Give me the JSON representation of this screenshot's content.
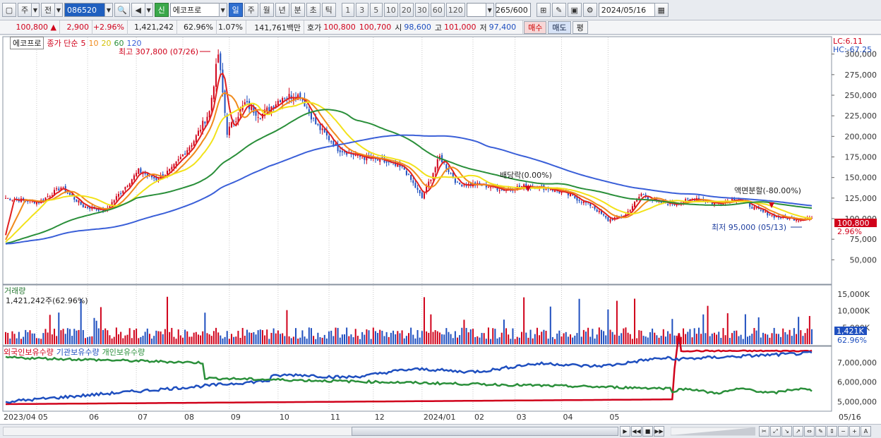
{
  "toolbar": {
    "period_main": "주",
    "prev_label": "전",
    "code": "086520",
    "name_badge": "신",
    "name": "에코프로",
    "periods": [
      "일",
      "주",
      "월",
      "년",
      "분",
      "초",
      "틱"
    ],
    "selected_period": "일",
    "intervals": [
      "1",
      "3",
      "5",
      "10",
      "20",
      "30",
      "60",
      "120"
    ],
    "count": "265/600",
    "date": "2024/05/16"
  },
  "quote": {
    "price": "100,800",
    "change": "2,900",
    "change_pct": "+2.96%",
    "volume": "1,421,242",
    "vol_ratio": "62.96%",
    "turnover": "1.07%",
    "amount": "141,761백만",
    "bid_label": "호가",
    "ask": "100,800",
    "bid": "100,700",
    "open_label": "시",
    "open": "98,600",
    "high_label": "고",
    "high": "101,000",
    "low_label": "저",
    "low": "97,400",
    "buy": "매수",
    "sell": "매도",
    "eval": "평"
  },
  "legend": {
    "name": "에코프로",
    "ma_label": "종가 단순",
    "ma5": "5",
    "ma10": "10",
    "ma20": "20",
    "ma60": "60",
    "ma120": "120"
  },
  "annotations": {
    "high": "최고 307,800 (07/26)",
    "low": "최저 95,000 (05/13)",
    "dividend": "배당락(0.00%)",
    "split": "액면분할(-80.00%)"
  },
  "right_labels": {
    "lc": "LC:6.11",
    "hc": "HC:-67.25",
    "price_tag": "100,800",
    "pct_tag": "2.96%",
    "vol_tag": "1,421K",
    "vol_pct_tag": "62.96%"
  },
  "volume": {
    "title": "거래량",
    "info": "1,421,242주(62.96%)"
  },
  "holdings": {
    "foreign": "외국인보유수량",
    "inst": "기관보유수량",
    "indiv": "개인보유수량"
  },
  "colors": {
    "up": "#d0021b",
    "down": "#1f4fbf",
    "ma5": "#e02020",
    "ma10": "#f08a1c",
    "ma20": "#f2e21a",
    "ma60": "#2a8f3a",
    "ma120": "#3a5fd8"
  },
  "chart_data": {
    "type": "candlestick",
    "price_axis": [
      "300,000",
      "275,000",
      "250,000",
      "225,000",
      "200,000",
      "175,000",
      "150,000",
      "125,000",
      "100,000",
      "75,000",
      "50,000"
    ],
    "volume_axis": [
      "15,000K",
      "10,000K",
      "5,000K"
    ],
    "holdings_axis": [
      "7,000,000",
      "6,000,000",
      "5,000,000"
    ],
    "x_labels": [
      "2023/04",
      "05",
      "06",
      "07",
      "08",
      "09",
      "10",
      "11",
      "12",
      "2024/01",
      "02",
      "03",
      "04",
      "05",
      "05/16"
    ],
    "close_path": [
      [
        0,
        125000
      ],
      [
        15,
        120000
      ],
      [
        25,
        138000
      ],
      [
        35,
        115000
      ],
      [
        45,
        110000
      ],
      [
        60,
        158000
      ],
      [
        68,
        148000
      ],
      [
        75,
        160000
      ],
      [
        85,
        195000
      ],
      [
        92,
        230000
      ],
      [
        96,
        300000
      ],
      [
        100,
        205000
      ],
      [
        108,
        240000
      ],
      [
        115,
        225000
      ],
      [
        125,
        248000
      ],
      [
        133,
        250000
      ],
      [
        140,
        215000
      ],
      [
        150,
        185000
      ],
      [
        160,
        175000
      ],
      [
        170,
        170000
      ],
      [
        180,
        160000
      ],
      [
        188,
        125000
      ],
      [
        196,
        175000
      ],
      [
        204,
        142000
      ],
      [
        215,
        141000
      ],
      [
        225,
        135000
      ],
      [
        235,
        140000
      ],
      [
        245,
        137000
      ],
      [
        255,
        128000
      ],
      [
        265,
        115000
      ],
      [
        272,
        98000
      ],
      [
        280,
        105000
      ],
      [
        287,
        130000
      ],
      [
        294,
        120000
      ],
      [
        302,
        118000
      ],
      [
        312,
        125000
      ],
      [
        320,
        118000
      ],
      [
        330,
        125000
      ],
      [
        340,
        110000
      ],
      [
        348,
        102000
      ],
      [
        358,
        99000
      ],
      [
        362,
        100800
      ]
    ]
  }
}
